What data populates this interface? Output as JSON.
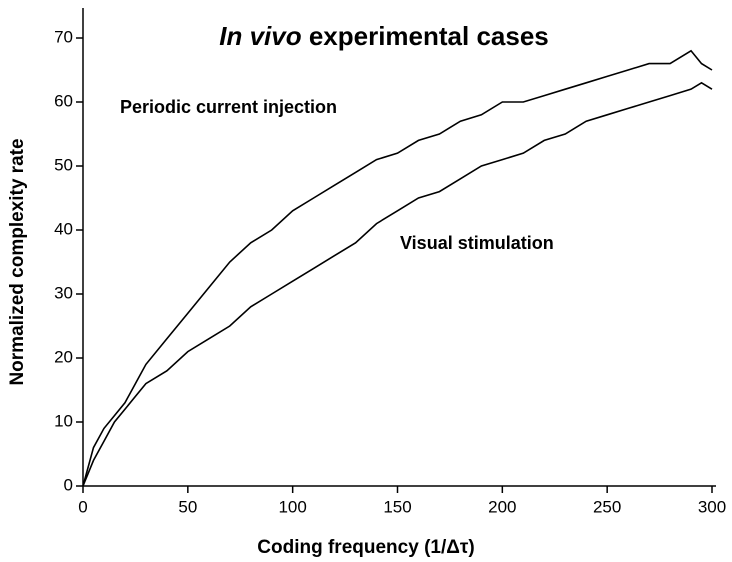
{
  "chart_data": {
    "type": "line",
    "title": "In vivo experimental cases",
    "x_label": "Coding frequency (1/Δτ)",
    "y_label": "Normalized complexity rate",
    "x": [
      0,
      5,
      10,
      15,
      20,
      25,
      30,
      40,
      50,
      60,
      70,
      80,
      90,
      100,
      110,
      120,
      130,
      140,
      150,
      160,
      170,
      180,
      190,
      200,
      210,
      220,
      230,
      240,
      250,
      260,
      270,
      280,
      290,
      295,
      300
    ],
    "series": [
      {
        "name": "Periodic current injection",
        "color": "#000000",
        "values": [
          0,
          6,
          9,
          11,
          13,
          16,
          19,
          23,
          27,
          31,
          35,
          38,
          40,
          43,
          45,
          47,
          49,
          51,
          52,
          54,
          55,
          57,
          58,
          60,
          60,
          61,
          62,
          63,
          64,
          65,
          66,
          66,
          68,
          66,
          65
        ]
      },
      {
        "name": "Visual stimulation",
        "color": "#000000",
        "values": [
          0,
          4,
          7,
          10,
          12,
          14,
          16,
          18,
          21,
          23,
          25,
          28,
          30,
          32,
          34,
          36,
          38,
          41,
          43,
          45,
          46,
          48,
          50,
          51,
          52,
          54,
          55,
          57,
          58,
          59,
          60,
          61,
          62,
          63,
          62
        ]
      }
    ],
    "xlim": [
      0,
      300
    ],
    "xticks": [
      0,
      50,
      100,
      150,
      200,
      250,
      300
    ],
    "ylim": [
      0,
      70
    ],
    "yticks": [
      0,
      10,
      20,
      30,
      40,
      50,
      60,
      70
    ],
    "grid": false
  }
}
